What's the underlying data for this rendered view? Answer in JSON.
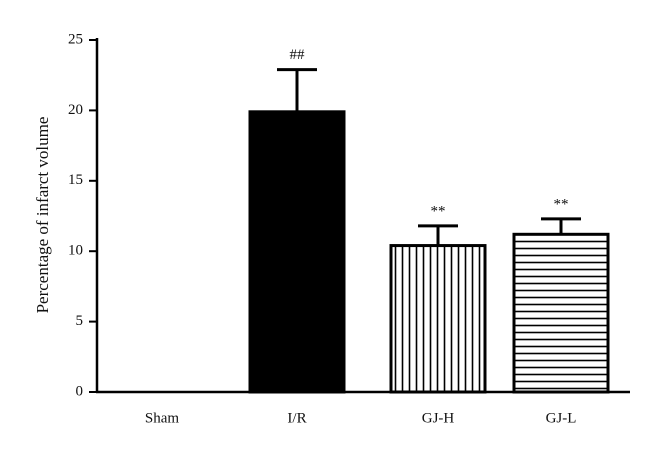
{
  "chart_data": {
    "type": "bar",
    "y_label": "Percentage of infarct volume",
    "categories": [
      "Sham",
      "I/R",
      "GJ-H",
      "GJ-L"
    ],
    "values": [
      0,
      19.9,
      10.4,
      11.2
    ],
    "errors": [
      0,
      3.0,
      1.4,
      1.1
    ],
    "annotations": [
      null,
      "##",
      "**",
      "**"
    ],
    "fills": [
      "solid",
      "solid",
      "vertical-stripes",
      "horizontal-stripes"
    ],
    "color": "#000000",
    "ylim": [
      0,
      25
    ],
    "yticks": [
      0,
      5,
      10,
      15,
      20,
      25
    ]
  }
}
